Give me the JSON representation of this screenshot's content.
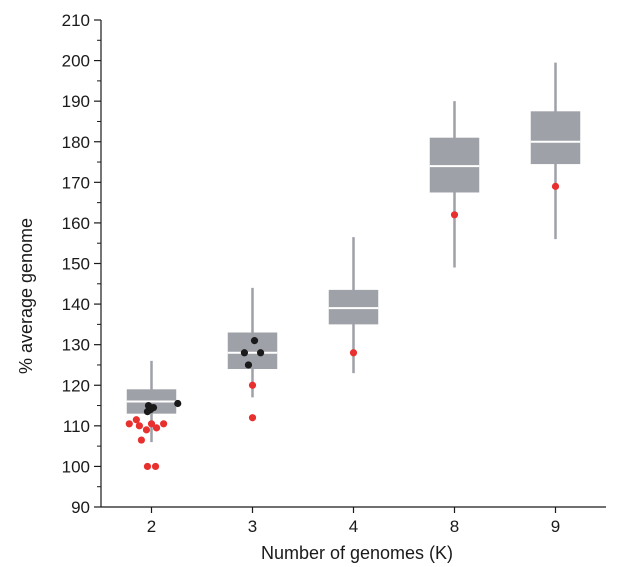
{
  "chart_data": {
    "type": "box",
    "xlabel": "Number of genomes (K)",
    "ylabel": "% average genome",
    "categories": [
      "2",
      "3",
      "4",
      "8",
      "9"
    ],
    "ylim": [
      90,
      210
    ],
    "yticks": [
      90,
      100,
      110,
      120,
      130,
      140,
      150,
      160,
      170,
      180,
      190,
      200,
      210
    ],
    "grid": false,
    "boxes": [
      {
        "category": "2",
        "whisker_low": 106,
        "q1": 113,
        "median": 116,
        "q3": 119,
        "whisker_high": 126
      },
      {
        "category": "3",
        "whisker_low": 117,
        "q1": 124,
        "median": 128,
        "q3": 133,
        "whisker_high": 144
      },
      {
        "category": "4",
        "whisker_low": 123,
        "q1": 135,
        "median": 139,
        "q3": 143.5,
        "whisker_high": 156.5
      },
      {
        "category": "8",
        "whisker_low": 149,
        "q1": 167.5,
        "median": 174,
        "q3": 181,
        "whisker_high": 190
      },
      {
        "category": "9",
        "whisker_low": 156,
        "q1": 174.5,
        "median": 180,
        "q3": 187.5,
        "whisker_high": 199.5
      }
    ],
    "points_red": [
      {
        "x": "2",
        "offset": -0.22,
        "y": 110.5
      },
      {
        "x": "2",
        "offset": -0.15,
        "y": 111.5
      },
      {
        "x": "2",
        "offset": -0.12,
        "y": 110
      },
      {
        "x": "2",
        "offset": -0.05,
        "y": 109
      },
      {
        "x": "2",
        "offset": 0.0,
        "y": 110.5
      },
      {
        "x": "2",
        "offset": 0.05,
        "y": 109.5
      },
      {
        "x": "2",
        "offset": 0.12,
        "y": 110.5
      },
      {
        "x": "2",
        "offset": -0.1,
        "y": 106.5
      },
      {
        "x": "2",
        "offset": -0.04,
        "y": 100
      },
      {
        "x": "2",
        "offset": 0.04,
        "y": 100
      },
      {
        "x": "3",
        "offset": 0.0,
        "y": 120
      },
      {
        "x": "3",
        "offset": 0.0,
        "y": 112
      },
      {
        "x": "4",
        "offset": 0.0,
        "y": 128
      },
      {
        "x": "8",
        "offset": 0.0,
        "y": 162
      },
      {
        "x": "9",
        "offset": 0.0,
        "y": 169
      }
    ],
    "points_black": [
      {
        "x": "2",
        "offset": -0.03,
        "y": 115
      },
      {
        "x": "2",
        "offset": -0.01,
        "y": 114
      },
      {
        "x": "2",
        "offset": 0.02,
        "y": 114.5
      },
      {
        "x": "2",
        "offset": -0.04,
        "y": 113.5
      },
      {
        "x": "2",
        "offset": 0.26,
        "y": 115.5
      },
      {
        "x": "3",
        "offset": -0.08,
        "y": 128
      },
      {
        "x": "3",
        "offset": 0.08,
        "y": 128
      },
      {
        "x": "3",
        "offset": 0.02,
        "y": 131
      },
      {
        "x": "3",
        "offset": -0.04,
        "y": 125
      }
    ],
    "colors": {
      "box": "#9ea1a8",
      "median": "#ffffff",
      "red_points": "#e8302e",
      "black_points": "#1a1a1a",
      "axis": "#1a1a1a"
    }
  }
}
